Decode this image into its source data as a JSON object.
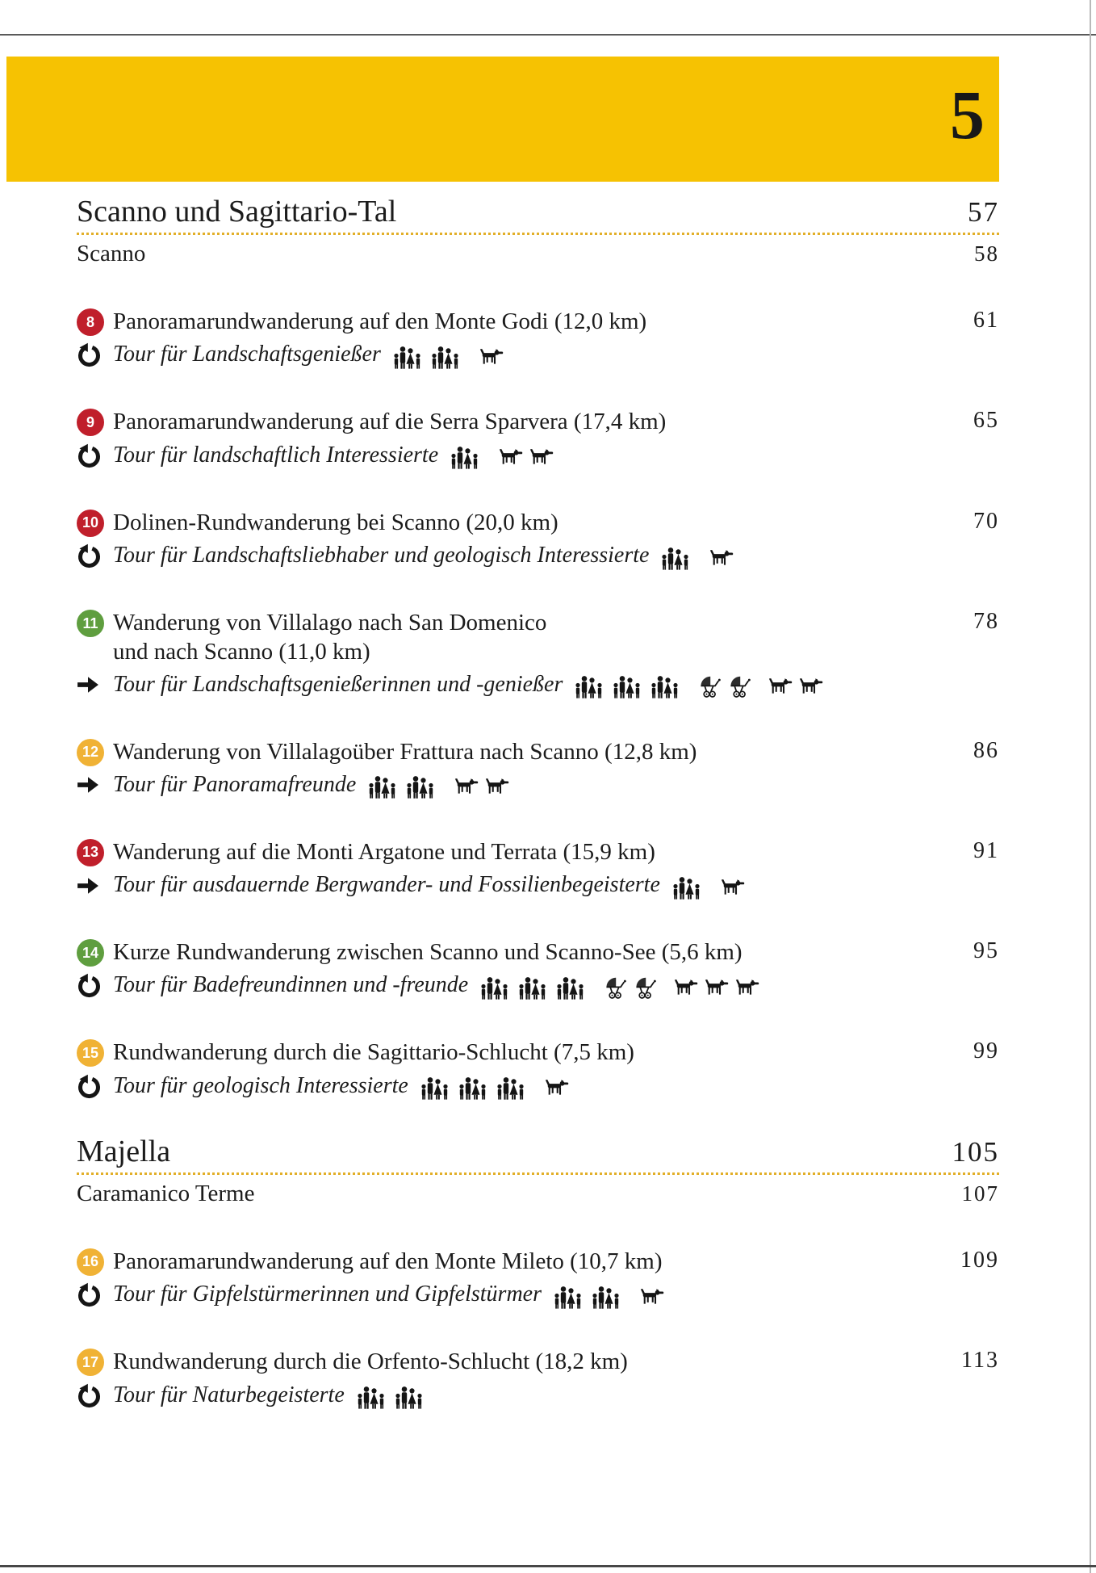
{
  "page_label": "5",
  "colors": {
    "band": "#F6C202",
    "dot_leader": "#E2AF29",
    "badge_red": "#C01F2B",
    "badge_green": "#5F9E3F",
    "badge_yellow": "#F0B235",
    "text": "#1C1C1C"
  },
  "icon_legend": {
    "loop": "circular-tour-arrow-icon",
    "arrow": "one-way-tour-arrow-icon",
    "family": "family-group-icon",
    "stroller": "stroller-icon",
    "dog": "dog-icon"
  },
  "sections": [
    {
      "title": "Scanno und Sagittario-Tal",
      "page": "57",
      "subrows": [
        {
          "label": "Scanno",
          "page": "58"
        }
      ],
      "tours": [
        {
          "number": "8",
          "badge": "red",
          "title_lines": [
            "Panoramarundwanderung auf den Monte Godi (12,0 km)"
          ],
          "page": "61",
          "marker": "loop",
          "description": "Tour für Landschaftsgenießer",
          "icons": [
            "family",
            "family",
            "dog"
          ]
        },
        {
          "number": "9",
          "badge": "red",
          "title_lines": [
            "Panoramarundwanderung auf die Serra Sparvera (17,4 km)"
          ],
          "page": "65",
          "marker": "loop",
          "description": "Tour für landschaftlich Interessierte",
          "icons": [
            "family",
            "dog",
            "dog"
          ]
        },
        {
          "number": "10",
          "badge": "red",
          "title_lines": [
            "Dolinen-Rundwanderung bei Scanno (20,0 km)"
          ],
          "page": "70",
          "marker": "loop",
          "description": "Tour für Landschaftsliebhaber und geologisch Interessierte",
          "icons": [
            "family",
            "dog"
          ]
        },
        {
          "number": "11",
          "badge": "green",
          "title_lines": [
            "Wanderung von Villalago nach San Domenico",
            "und nach Scanno (11,0 km)"
          ],
          "page": "78",
          "marker": "arrow",
          "description": "Tour für Landschaftsgenießerinnen und -genießer",
          "icons": [
            "family",
            "family",
            "family",
            "stroller",
            "stroller",
            "dog",
            "dog"
          ]
        },
        {
          "number": "12",
          "badge": "yellow",
          "title_lines": [
            "Wanderung von Villalagoüber Frattura nach Scanno (12,8 km)"
          ],
          "page": "86",
          "marker": "arrow",
          "description": "Tour für Panoramafreunde",
          "icons": [
            "family",
            "family",
            "dog",
            "dog"
          ]
        },
        {
          "number": "13",
          "badge": "red",
          "title_lines": [
            "Wanderung auf die Monti Argatone und Terrata (15,9 km)"
          ],
          "page": "91",
          "marker": "arrow",
          "description": "Tour für ausdauernde Bergwander- und Fossilienbegeisterte",
          "icons": [
            "family",
            "dog"
          ]
        },
        {
          "number": "14",
          "badge": "green",
          "title_lines": [
            "Kurze Rundwanderung zwischen Scanno und Scanno-See (5,6 km)"
          ],
          "page": "95",
          "marker": "loop",
          "description": "Tour für Badefreundinnen und -freunde",
          "icons": [
            "family",
            "family",
            "family",
            "stroller",
            "stroller",
            "dog",
            "dog",
            "dog"
          ]
        },
        {
          "number": "15",
          "badge": "yellow",
          "title_lines": [
            "Rundwanderung durch die Sagittario-Schlucht (7,5 km)"
          ],
          "page": "99",
          "marker": "loop",
          "description": "Tour für geologisch Interessierte",
          "icons": [
            "family",
            "family",
            "family",
            "dog"
          ]
        }
      ]
    },
    {
      "title": "Majella",
      "page": "105",
      "subrows": [
        {
          "label": "Caramanico Terme",
          "page": "107"
        }
      ],
      "tours": [
        {
          "number": "16",
          "badge": "yellow",
          "title_lines": [
            "Panoramarundwanderung auf den Monte Mileto (10,7 km)"
          ],
          "page": "109",
          "marker": "loop",
          "description": "Tour für Gipfelstürmerinnen und Gipfelstürmer",
          "icons": [
            "family",
            "family",
            "dog"
          ]
        },
        {
          "number": "17",
          "badge": "yellow",
          "title_lines": [
            "Rundwanderung durch die Orfento-Schlucht (18,2 km)"
          ],
          "page": "113",
          "marker": "loop",
          "description": "Tour für Naturbegeisterte",
          "icons": [
            "family",
            "family"
          ]
        }
      ]
    }
  ]
}
